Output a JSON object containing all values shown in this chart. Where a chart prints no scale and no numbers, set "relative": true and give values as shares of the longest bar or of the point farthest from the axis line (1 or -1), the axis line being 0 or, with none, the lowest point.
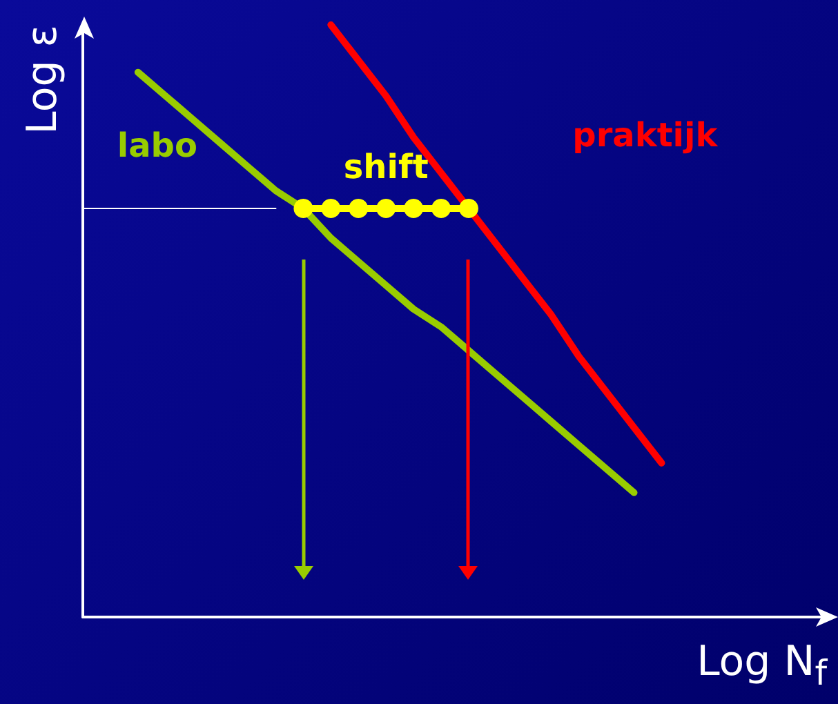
{
  "chart_data": {
    "type": "line",
    "relative": true,
    "xlabel": "Log N$_{f}$",
    "ylabel": "Log ε",
    "legend": false,
    "grid": false,
    "marker": "none",
    "categories": [
      null,
      null,
      null,
      null,
      null,
      null,
      null,
      null,
      null,
      null,
      null,
      null,
      null,
      null,
      null,
      null,
      null,
      null,
      null,
      null,
      null,
      null,
      null,
      null,
      null,
      null,
      null,
      null
    ],
    "series": [
      {
        "name": "labo",
        "color": "#99cc00",
        "values": [
          null,
          null,
          0.92,
          0.88,
          0.84,
          0.8,
          0.76,
          0.72,
          0.69,
          0.64,
          0.6,
          0.56,
          0.52,
          0.49,
          0.45,
          0.41,
          0.37,
          0.33,
          0.29,
          0.25,
          0.21,
          null,
          null,
          null,
          null,
          null,
          null,
          null
        ]
      },
      {
        "name": "praktijk",
        "color": "#ff0000",
        "values": [
          null,
          null,
          null,
          null,
          null,
          null,
          null,
          null,
          null,
          1.0,
          0.94,
          0.88,
          0.81,
          0.75,
          0.69,
          0.63,
          0.57,
          0.51,
          0.44,
          0.38,
          0.32,
          0.26,
          null,
          null,
          null,
          null,
          null,
          null
        ]
      },
      {
        "name": "shift",
        "color": "#ffff00",
        "marker": "circle",
        "values": [
          null,
          null,
          null,
          null,
          null,
          null,
          null,
          null,
          0.69,
          0.69,
          0.69,
          0.69,
          0.69,
          0.69,
          0.69,
          null,
          null,
          null,
          null,
          null,
          null,
          null,
          null,
          null,
          null,
          null,
          null,
          null
        ]
      },
      {
        "color": "#ffffff",
        "values": [
          0.69,
          0.69,
          0.69,
          0.69,
          0.69,
          0.69,
          0.69,
          0.69,
          null,
          null,
          null,
          null,
          null,
          null,
          null,
          null,
          null,
          null,
          null,
          null,
          null,
          null,
          null,
          null,
          null,
          null,
          null,
          null
        ]
      }
    ]
  }
}
